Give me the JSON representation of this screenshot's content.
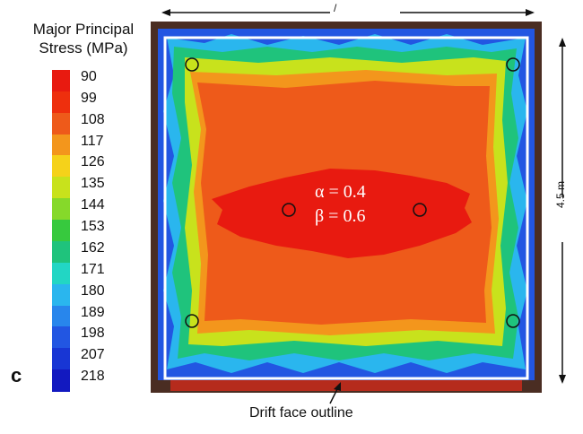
{
  "legend": {
    "title_line1": "Major Principal",
    "title_line2": "Stress (MPa)",
    "entries": [
      {
        "label": "90",
        "color": "#e81a10"
      },
      {
        "label": "99",
        "color": "#ee2f0d"
      },
      {
        "label": "108",
        "color": "#ee5a1a"
      },
      {
        "label": "117",
        "color": "#f3961c"
      },
      {
        "label": "126",
        "color": "#f5d21a"
      },
      {
        "label": "135",
        "color": "#c8e21c"
      },
      {
        "label": "144",
        "color": "#86d92a"
      },
      {
        "label": "153",
        "color": "#37c93e"
      },
      {
        "label": "162",
        "color": "#1fc37c"
      },
      {
        "label": "171",
        "color": "#22d6c4"
      },
      {
        "label": "180",
        "color": "#2ab6ee"
      },
      {
        "label": "189",
        "color": "#2886ec"
      },
      {
        "label": "198",
        "color": "#2256e2"
      },
      {
        "label": "207",
        "color": "#1836d4"
      },
      {
        "label": "218",
        "color": "#1219c0"
      }
    ]
  },
  "panel_label": "c",
  "width_dimension_label": "/",
  "height_dimension_label": "4.5 m",
  "alpha_text": "α = 0.4",
  "beta_text": "β = 0.6",
  "outline_label": "Drift face outline"
}
